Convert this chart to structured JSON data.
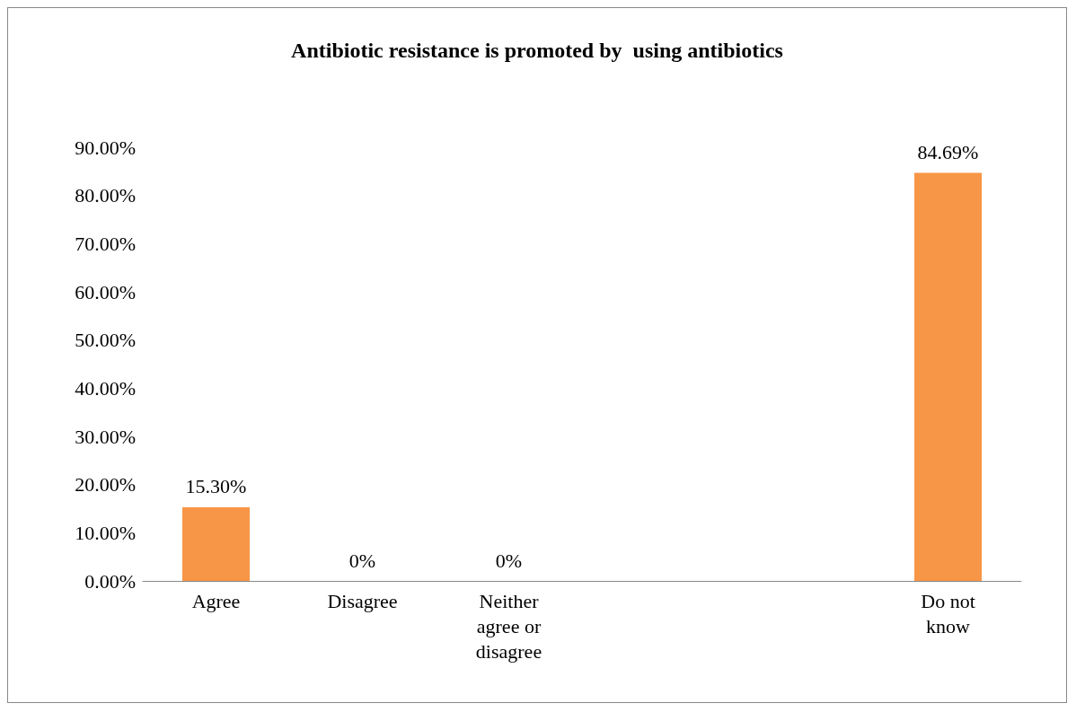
{
  "chart_data": {
    "type": "bar",
    "title": "Antibiotic resistance is promoted by  using antibiotics",
    "categories": [
      "Agree",
      "Disagree",
      "Neither\nagree or\ndisagree",
      null,
      null,
      "Do not\nknow"
    ],
    "values": [
      15.3,
      0,
      0,
      null,
      null,
      84.69
    ],
    "value_labels": [
      "15.30%",
      "0%",
      "0%",
      null,
      null,
      "84.69%"
    ],
    "color": "#f79646",
    "ylim": [
      0,
      90
    ],
    "yticks": [
      {
        "value": 0,
        "label": "0.00%"
      },
      {
        "value": 10,
        "label": "10.00%"
      },
      {
        "value": 20,
        "label": "20.00%"
      },
      {
        "value": 30,
        "label": "30.00%"
      },
      {
        "value": 40,
        "label": "40.00%"
      },
      {
        "value": 50,
        "label": "50.00%"
      },
      {
        "value": 60,
        "label": "60.00%"
      },
      {
        "value": 70,
        "label": "70.00%"
      },
      {
        "value": 80,
        "label": "80.00%"
      },
      {
        "value": 90,
        "label": "90.00%"
      }
    ],
    "grid": false
  }
}
